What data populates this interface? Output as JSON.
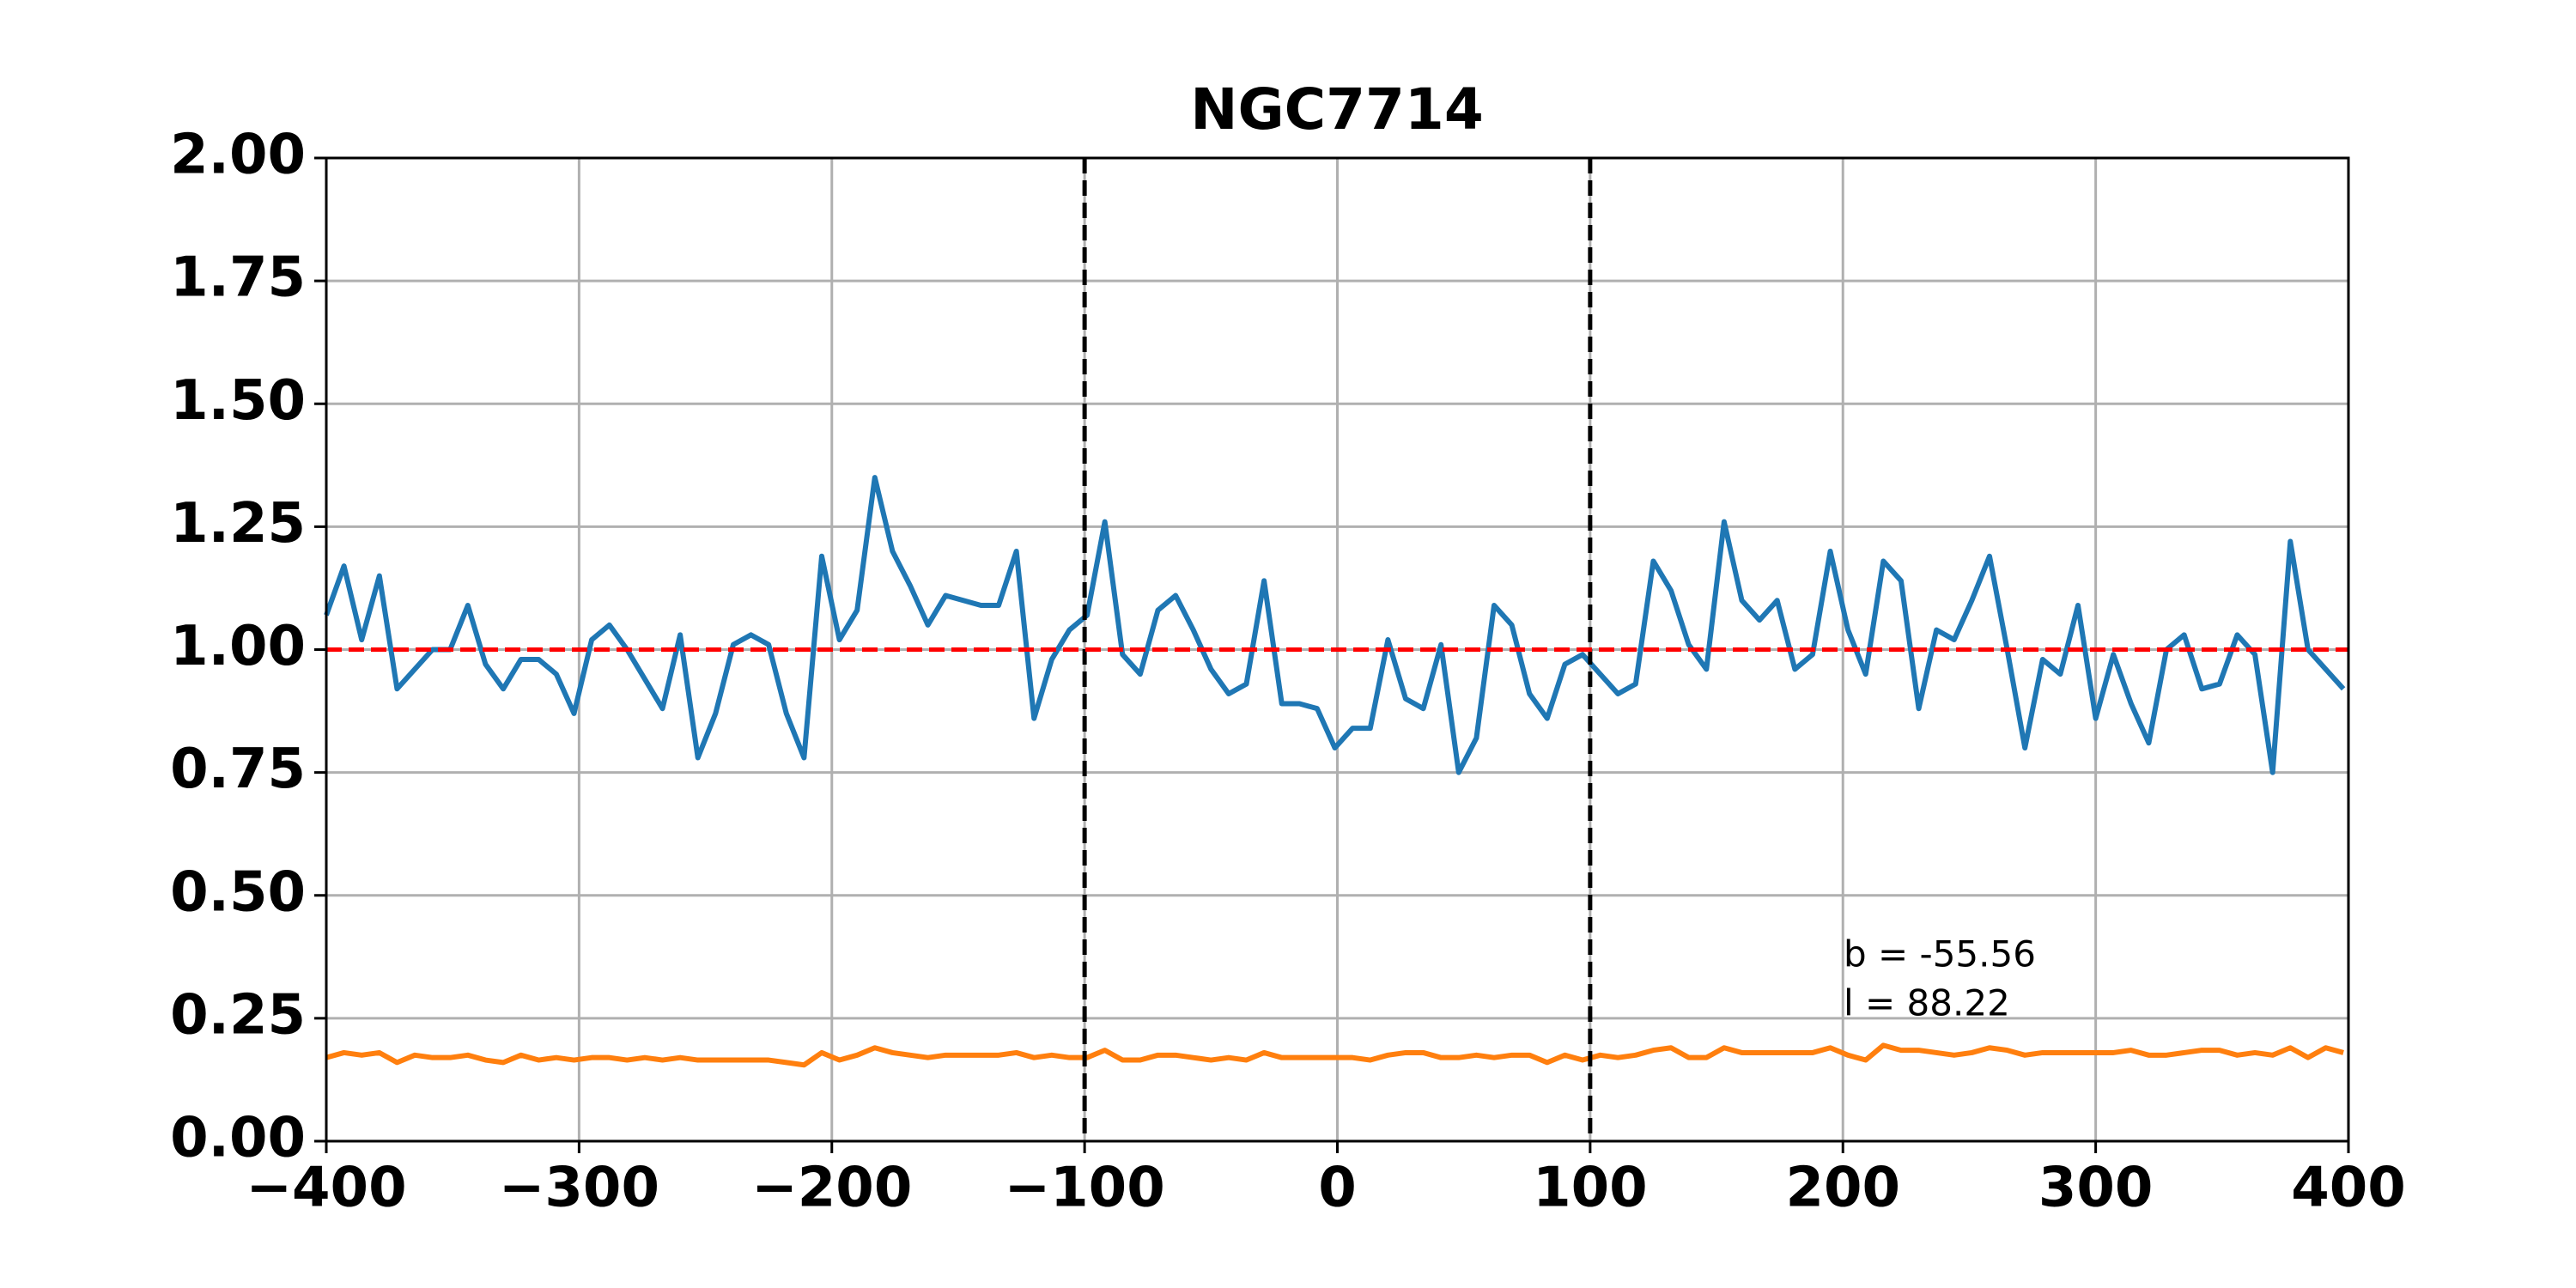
{
  "chart_data": {
    "type": "line",
    "title": "NGC7714",
    "x": [
      -400,
      -393,
      -386,
      -379,
      -372,
      -365,
      -358,
      -351,
      -344,
      -337,
      -330,
      -323,
      -316,
      -309,
      -302,
      -295,
      -288,
      -281,
      -274,
      -267,
      -260,
      -253,
      -246,
      -239,
      -232,
      -225,
      -218,
      -211,
      -204,
      -197,
      -190,
      -183,
      -176,
      -169,
      -162,
      -155,
      -148,
      -141,
      -134,
      -127,
      -120,
      -113,
      -106,
      -99,
      -92,
      -85,
      -78,
      -71,
      -64,
      -57,
      -50,
      -43,
      -36,
      -29,
      -22,
      -15,
      -8,
      -1,
      6,
      13,
      20,
      27,
      34,
      41,
      48,
      55,
      62,
      69,
      76,
      83,
      90,
      97,
      104,
      111,
      118,
      125,
      132,
      139,
      146,
      153,
      160,
      167,
      174,
      181,
      188,
      195,
      202,
      209,
      216,
      223,
      230,
      237,
      244,
      251,
      258,
      265,
      272,
      279,
      286,
      293,
      300,
      307,
      314,
      321,
      328,
      335,
      342,
      349,
      356,
      363,
      370,
      377,
      384,
      391,
      398
    ],
    "series": [
      {
        "color": "#1f77b4",
        "values": [
          1.07,
          1.17,
          1.02,
          1.15,
          0.92,
          0.96,
          1.0,
          1.0,
          1.09,
          0.97,
          0.92,
          0.98,
          0.98,
          0.95,
          0.87,
          1.02,
          1.05,
          1.0,
          0.94,
          0.88,
          1.03,
          0.78,
          0.87,
          1.01,
          1.03,
          1.01,
          0.87,
          0.78,
          1.19,
          1.02,
          1.08,
          1.35,
          1.2,
          1.13,
          1.05,
          1.11,
          1.1,
          1.09,
          1.09,
          1.2,
          0.86,
          0.98,
          1.04,
          1.07,
          1.26,
          0.99,
          0.95,
          1.08,
          1.11,
          1.04,
          0.96,
          0.91,
          0.93,
          1.14,
          0.89,
          0.89,
          0.88,
          0.8,
          0.84,
          0.84,
          1.02,
          0.9,
          0.88,
          1.01,
          0.75,
          0.82,
          1.09,
          1.05,
          0.91,
          0.86,
          0.97,
          0.99,
          0.95,
          0.91,
          0.93,
          1.18,
          1.12,
          1.01,
          0.96,
          1.26,
          1.1,
          1.06,
          1.1,
          0.96,
          0.99,
          1.2,
          1.04,
          0.95,
          1.18,
          1.14,
          0.88,
          1.04,
          1.02,
          1.1,
          1.19,
          1.0,
          0.8,
          0.98,
          0.95,
          1.09,
          0.86,
          0.99,
          0.89,
          0.81,
          1.0,
          1.03,
          0.92,
          0.93,
          1.03,
          0.99,
          0.75,
          1.22,
          1.0,
          0.96,
          0.92
        ]
      },
      {
        "color": "#ff7f0e",
        "values": [
          0.17,
          0.18,
          0.175,
          0.18,
          0.16,
          0.175,
          0.17,
          0.17,
          0.175,
          0.165,
          0.16,
          0.175,
          0.165,
          0.17,
          0.165,
          0.17,
          0.17,
          0.165,
          0.17,
          0.165,
          0.17,
          0.165,
          0.165,
          0.165,
          0.165,
          0.165,
          0.16,
          0.155,
          0.18,
          0.165,
          0.175,
          0.19,
          0.18,
          0.175,
          0.17,
          0.175,
          0.175,
          0.175,
          0.175,
          0.18,
          0.17,
          0.175,
          0.17,
          0.17,
          0.185,
          0.165,
          0.165,
          0.175,
          0.175,
          0.17,
          0.165,
          0.17,
          0.165,
          0.18,
          0.17,
          0.17,
          0.17,
          0.17,
          0.17,
          0.165,
          0.175,
          0.18,
          0.18,
          0.17,
          0.17,
          0.175,
          0.17,
          0.175,
          0.175,
          0.16,
          0.175,
          0.165,
          0.175,
          0.17,
          0.175,
          0.185,
          0.19,
          0.17,
          0.17,
          0.19,
          0.18,
          0.18,
          0.18,
          0.18,
          0.18,
          0.19,
          0.175,
          0.165,
          0.195,
          0.185,
          0.185,
          0.18,
          0.175,
          0.18,
          0.19,
          0.185,
          0.175,
          0.18,
          0.18,
          0.18,
          0.18,
          0.18,
          0.185,
          0.175,
          0.175,
          0.18,
          0.185,
          0.185,
          0.175,
          0.18,
          0.175,
          0.19,
          0.17,
          0.19,
          0.18
        ]
      }
    ],
    "vlines": [
      -100,
      100
    ],
    "vline_color": "#000000",
    "hline": 1.0,
    "hline_color": "#ff0000",
    "xlim": [
      -400,
      400
    ],
    "xticks": [
      {
        "value": -400,
        "label": "−400"
      },
      {
        "value": -300,
        "label": "−300"
      },
      {
        "value": -200,
        "label": "−200"
      },
      {
        "value": -100,
        "label": "−100"
      },
      0,
      100,
      200,
      300,
      400
    ],
    "ylim": [
      0,
      2
    ],
    "yticks": [
      {
        "value": 0,
        "label": "0.00"
      },
      {
        "value": 0.25,
        "label": "0.25"
      },
      {
        "value": 0.5,
        "label": "0.50"
      },
      {
        "value": 0.75,
        "label": "0.75"
      },
      {
        "value": 1,
        "label": "1.00"
      },
      {
        "value": 1.25,
        "label": "1.25"
      },
      {
        "value": 1.5,
        "label": "1.50"
      },
      {
        "value": 1.75,
        "label": "1.75"
      },
      {
        "value": 2,
        "label": "2.00"
      }
    ],
    "grid": true,
    "annotations": [
      "b = -55.56",
      "l = 88.22"
    ]
  }
}
